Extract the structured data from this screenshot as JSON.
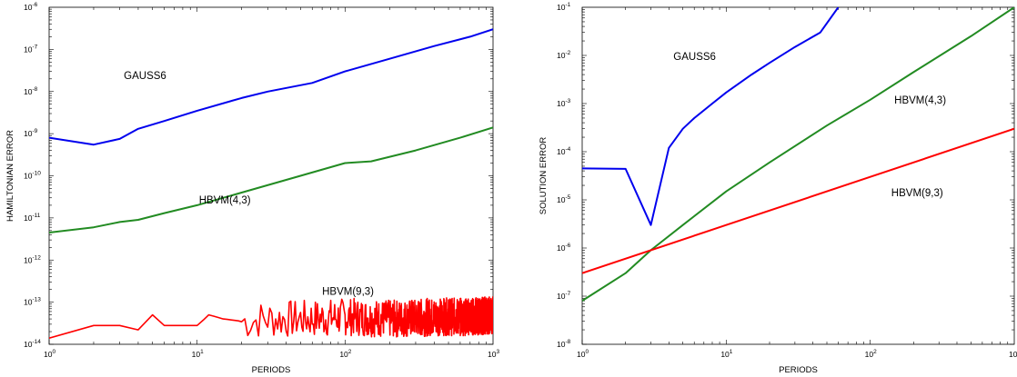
{
  "chart_data": [
    {
      "type": "line",
      "x_scale": "log",
      "y_scale": "log",
      "xlabel": "PERIODS",
      "ylabel": "HAMILTONIAN ERROR",
      "xlim": [
        1,
        1000
      ],
      "ylim": [
        1e-14,
        1e-06
      ],
      "xticks": [
        {
          "base": "10",
          "exp": "0"
        },
        {
          "base": "10",
          "exp": "1"
        },
        {
          "base": "10",
          "exp": "2"
        },
        {
          "base": "10",
          "exp": "3"
        }
      ],
      "yticks": [
        {
          "base": "10",
          "exp": "-14"
        },
        {
          "base": "10",
          "exp": "-13"
        },
        {
          "base": "10",
          "exp": "-12"
        },
        {
          "base": "10",
          "exp": "-11"
        },
        {
          "base": "10",
          "exp": "-10"
        },
        {
          "base": "10",
          "exp": "-9"
        },
        {
          "base": "10",
          "exp": "-8"
        },
        {
          "base": "10",
          "exp": "-7"
        },
        {
          "base": "10",
          "exp": "-6"
        }
      ],
      "series": [
        {
          "color": "#0000ee",
          "x": [
            1,
            2,
            3,
            4,
            6,
            10,
            20,
            30,
            60,
            100,
            200,
            400,
            700,
            1000
          ],
          "y": [
            8e-10,
            5.5e-10,
            7.5e-10,
            1.3e-09,
            2e-09,
            3.5e-09,
            7e-09,
            1e-08,
            1.6e-08,
            3e-08,
            6e-08,
            1.2e-07,
            2e-07,
            3e-07
          ]
        },
        {
          "color": "#228b22",
          "x": [
            1,
            2,
            3,
            4,
            6,
            10,
            20,
            50,
            100,
            150,
            300,
            600,
            1000
          ],
          "y": [
            4.5e-12,
            6e-12,
            8e-12,
            9e-12,
            1.3e-11,
            2e-11,
            4e-11,
            1e-10,
            2e-10,
            2.2e-10,
            4e-10,
            8e-10,
            1.4e-09
          ]
        },
        {
          "color": "#ff0000",
          "noisy": true,
          "x": [
            1,
            2,
            3,
            4,
            5,
            6,
            8,
            10,
            12,
            15,
            20,
            30,
            50,
            100,
            200,
            400,
            700,
            1000
          ],
          "y": [
            1.4e-14,
            2.8e-14,
            2.8e-14,
            2.2e-14,
            5e-14,
            2.8e-14,
            2.8e-14,
            2.8e-14,
            5e-14,
            4e-14,
            3.5e-14,
            4e-14,
            4e-14,
            4.5e-14,
            4e-14,
            4.5e-14,
            4.5e-14,
            5e-14
          ]
        }
      ],
      "annotations": [
        {
          "text": "GAUSS6",
          "x": 3.2,
          "y": 2e-08
        },
        {
          "text": "HBVM(4,3)",
          "x": 10.3,
          "y": 2.2e-11
        },
        {
          "text": "HBVM(9,3)",
          "x": 70,
          "y": 1.5e-13
        }
      ]
    },
    {
      "type": "line",
      "x_scale": "log",
      "y_scale": "log",
      "xlabel": "PERIODS",
      "ylabel": "SOLUTION ERROR",
      "xlim": [
        1,
        1000
      ],
      "ylim": [
        1e-08,
        0.1
      ],
      "xticks": [
        {
          "base": "10",
          "exp": "0"
        },
        {
          "base": "10",
          "exp": "1"
        },
        {
          "base": "10",
          "exp": "2"
        },
        {
          "base": "10",
          "exp": "3"
        }
      ],
      "yticks": [
        {
          "base": "10",
          "exp": "-8"
        },
        {
          "base": "10",
          "exp": "-7"
        },
        {
          "base": "10",
          "exp": "-6"
        },
        {
          "base": "10",
          "exp": "-5"
        },
        {
          "base": "10",
          "exp": "-4"
        },
        {
          "base": "10",
          "exp": "-3"
        },
        {
          "base": "10",
          "exp": "-2"
        },
        {
          "base": "10",
          "exp": "-1"
        }
      ],
      "series": [
        {
          "color": "#0000ee",
          "x": [
            1,
            2,
            3,
            4,
            5,
            6,
            8,
            10,
            15,
            20,
            30,
            45,
            60
          ],
          "y": [
            4.5e-05,
            4.4e-05,
            3e-06,
            0.00012,
            0.0003,
            0.0005,
            0.001,
            0.0017,
            0.004,
            0.007,
            0.015,
            0.03,
            0.1
          ]
        },
        {
          "color": "#228b22",
          "x": [
            1,
            2,
            3,
            5,
            10,
            20,
            50,
            100,
            200,
            500,
            1000
          ],
          "y": [
            8e-08,
            3e-07,
            9e-07,
            3e-06,
            1.5e-05,
            6e-05,
            0.00035,
            0.0012,
            0.0045,
            0.025,
            0.1
          ]
        },
        {
          "color": "#ff0000",
          "x": [
            1,
            10,
            100,
            1000
          ],
          "y": [
            3e-07,
            3e-06,
            3e-05,
            0.0003
          ]
        }
      ],
      "annotations": [
        {
          "text": "GAUSS6",
          "x": 4.3,
          "y": 0.008
        },
        {
          "text": "HBVM(4,3)",
          "x": 147,
          "y": 0.001
        },
        {
          "text": "HBVM(9,3)",
          "x": 140,
          "y": 1.2e-05
        }
      ]
    }
  ]
}
